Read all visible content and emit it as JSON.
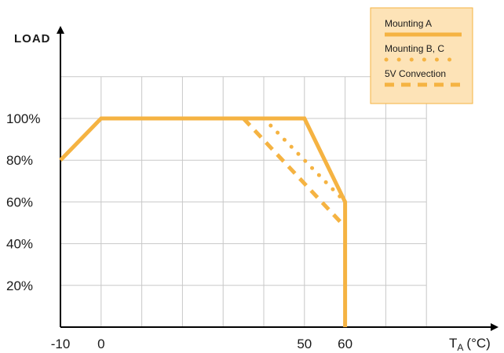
{
  "chart_data": {
    "type": "line",
    "ylabel": "LOAD",
    "xlabel": {
      "main": "T",
      "sub": "A",
      "unit": "(°C)"
    },
    "x_ticks": [
      {
        "value": -10,
        "label": "-10"
      },
      {
        "value": 0,
        "label": "0"
      },
      {
        "value": 50,
        "label": "50"
      },
      {
        "value": 60,
        "label": "60"
      }
    ],
    "y_ticks": [
      {
        "value": 20,
        "label": "20%"
      },
      {
        "value": 40,
        "label": "40%"
      },
      {
        "value": 60,
        "label": "60%"
      },
      {
        "value": 80,
        "label": "80%"
      },
      {
        "value": 100,
        "label": "100%"
      }
    ],
    "xlim": [
      -10,
      90
    ],
    "ylim": [
      0,
      120
    ],
    "x_gridlines": [
      0,
      10,
      20,
      30,
      40,
      50,
      60,
      70,
      80
    ],
    "y_gridlines": [
      20,
      40,
      60,
      80,
      100,
      120
    ],
    "grid": true,
    "legend_position": "top-right",
    "series": [
      {
        "name": "Mounting A",
        "style": "solid",
        "color": "#f5b342",
        "x": [
          -10,
          0,
          50,
          60,
          60
        ],
        "y": [
          80,
          100,
          100,
          60,
          0
        ]
      },
      {
        "name": "Mounting B, C",
        "style": "dotted",
        "color": "#f5b342",
        "x": [
          40,
          60
        ],
        "y": [
          100,
          60
        ]
      },
      {
        "name": "5V Convection",
        "style": "dashed",
        "color": "#f5b342",
        "x": [
          35,
          60
        ],
        "y": [
          100,
          48
        ]
      }
    ]
  },
  "colors": {
    "series": "#f5b342",
    "legend_bg": "#fde3b7",
    "legend_border": "#f5b342",
    "grid": "#c8c8c8",
    "axis": "#000000"
  }
}
